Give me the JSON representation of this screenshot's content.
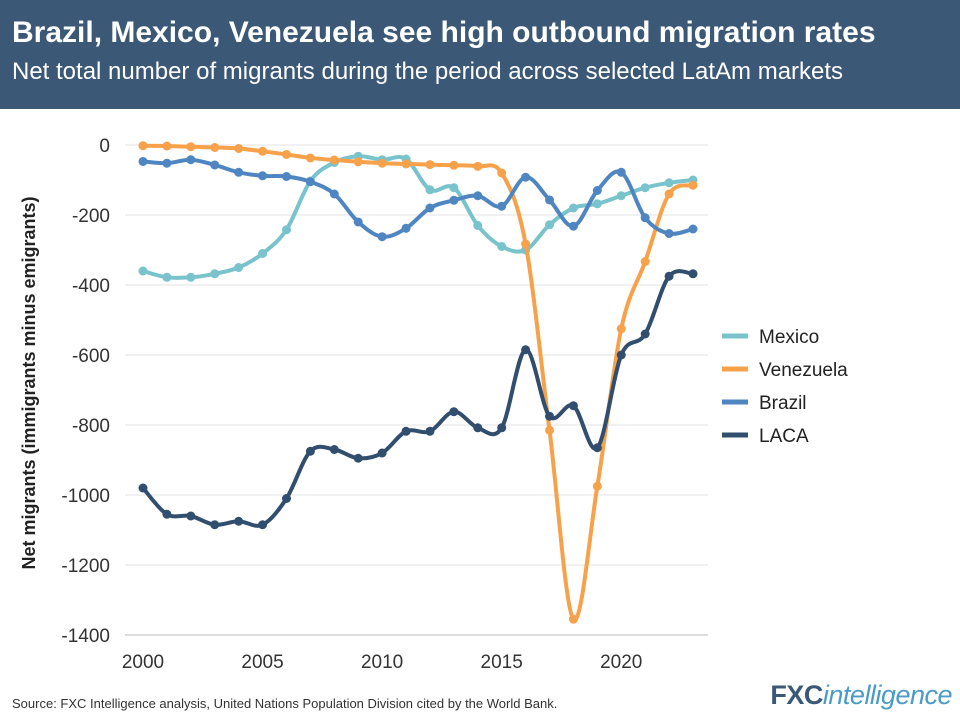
{
  "header": {
    "title": "Brazil, Mexico, Venezuela see high outbound migration rates",
    "subtitle": "Net total number of migrants during the period across selected LatAm markets"
  },
  "footer": {
    "source": "Source: FXC Intelligence analysis, United Nations Population Division cited by the World Bank.",
    "logo_part1": "FXC",
    "logo_part2": "intelligence"
  },
  "chart_data": {
    "type": "line",
    "title": "Brazil, Mexico, Venezuela see high outbound migration rates",
    "subtitle": "Net total number of migrants during the period across selected LatAm markets",
    "xlabel": "",
    "ylabel": "Net migrants (immigrants minus emigrants)",
    "xlim": [
      2000,
      2023
    ],
    "ylim": [
      -1400,
      0
    ],
    "x_ticks": [
      2000,
      2005,
      2010,
      2015,
      2020
    ],
    "y_ticks": [
      0,
      -200,
      -400,
      -600,
      -800,
      -1000,
      -1200,
      -1400
    ],
    "grid": true,
    "legend_position": "right",
    "x": [
      2000,
      2001,
      2002,
      2003,
      2004,
      2005,
      2006,
      2007,
      2008,
      2009,
      2010,
      2011,
      2012,
      2013,
      2014,
      2015,
      2016,
      2017,
      2018,
      2019,
      2020,
      2021,
      2022,
      2023
    ],
    "series": [
      {
        "name": "Mexico",
        "color": "#79c3cc",
        "values": [
          -360,
          -378,
          -378,
          -368,
          -350,
          -310,
          -242,
          -103,
          -50,
          -32,
          -42,
          -40,
          -128,
          -122,
          -230,
          -290,
          -300,
          -228,
          -180,
          -168,
          -145,
          -122,
          -108,
          -100
        ]
      },
      {
        "name": "Venezuela",
        "color": "#f7a14a",
        "values": [
          -2,
          -3,
          -5,
          -7,
          -10,
          -18,
          -27,
          -37,
          -43,
          -48,
          -52,
          -54,
          -56,
          -58,
          -61,
          -80,
          -283,
          -815,
          -1355,
          -975,
          -525,
          -333,
          -140,
          -115
        ]
      },
      {
        "name": "Brazil",
        "color": "#4f86c1",
        "values": [
          -47,
          -52,
          -42,
          -57,
          -78,
          -88,
          -90,
          -105,
          -140,
          -220,
          -262,
          -238,
          -180,
          -158,
          -145,
          -175,
          -92,
          -157,
          -232,
          -130,
          -78,
          -208,
          -253,
          -240
        ]
      },
      {
        "name": "LACA",
        "color": "#314e6e",
        "values": [
          -980,
          -1055,
          -1060,
          -1085,
          -1075,
          -1085,
          -1010,
          -875,
          -870,
          -895,
          -880,
          -818,
          -818,
          -762,
          -808,
          -808,
          -585,
          -775,
          -745,
          -865,
          -600,
          -540,
          -375,
          -368
        ]
      }
    ]
  }
}
